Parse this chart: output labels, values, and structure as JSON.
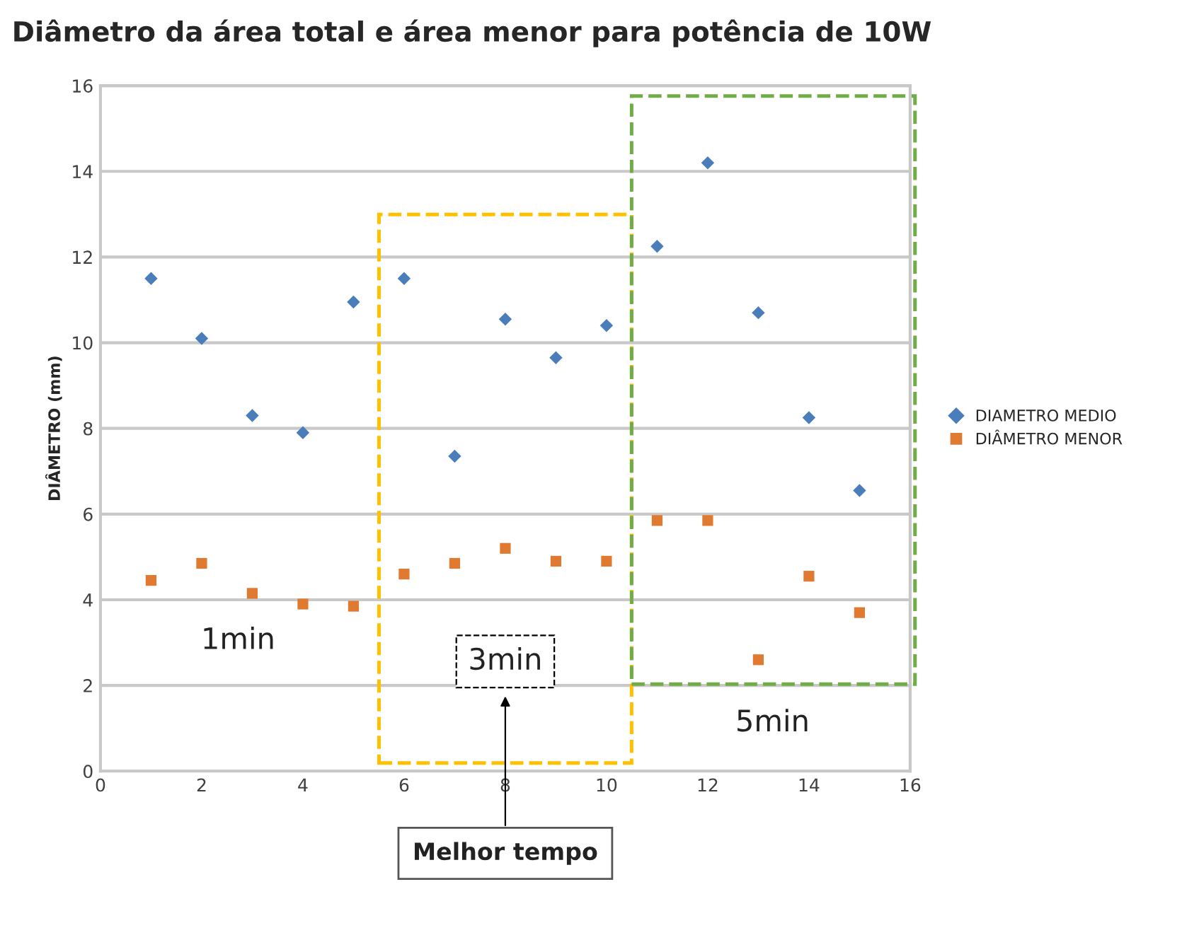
{
  "chart_data": {
    "type": "scatter",
    "title": "Diâmetro da área total e área menor para potência de 10W",
    "ylabel": "DIÂMETRO (mm)",
    "x": [
      1,
      2,
      3,
      4,
      5,
      6,
      7,
      8,
      9,
      10,
      11,
      12,
      13,
      14,
      15
    ],
    "series": [
      {
        "name": "DIAMETRO MEDIO",
        "color": "#4a7ebb",
        "marker": "diamond",
        "values": [
          11.5,
          10.1,
          8.3,
          7.9,
          10.95,
          11.5,
          7.35,
          10.55,
          9.65,
          10.4,
          12.25,
          14.2,
          10.7,
          8.25,
          6.55
        ]
      },
      {
        "name": "DIÂMETRO MENOR",
        "color": "#e07a30",
        "marker": "square",
        "values": [
          4.45,
          4.85,
          4.15,
          3.9,
          3.85,
          4.6,
          4.85,
          5.2,
          4.9,
          4.9,
          5.85,
          5.85,
          2.6,
          4.55,
          3.7
        ]
      }
    ],
    "xlim": [
      0,
      16
    ],
    "xticks": [
      0,
      2,
      4,
      6,
      8,
      10,
      12,
      14,
      16
    ],
    "ylim": [
      0,
      16
    ],
    "yticks": [
      0,
      2,
      4,
      6,
      8,
      10,
      12,
      14,
      16
    ],
    "grid": "y",
    "legend": "right",
    "annotations": [
      "1min",
      "3min",
      "5min",
      "Melhor tempo"
    ]
  }
}
